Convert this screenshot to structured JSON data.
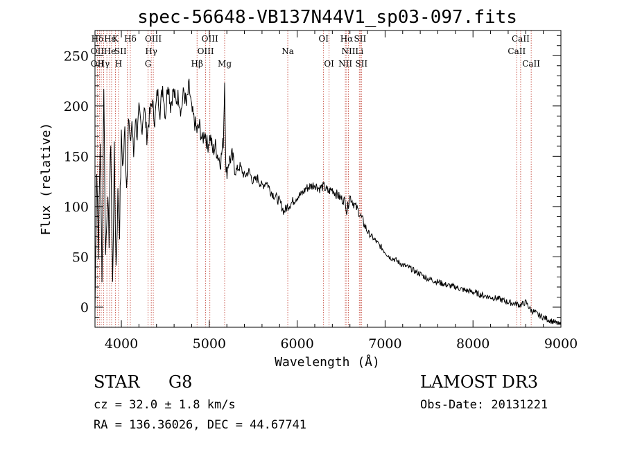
{
  "chart_data": {
    "type": "line",
    "title": "spec-56648-VB137N44V1_sp03-097.fits",
    "xlabel": "Wavelength (Å)",
    "ylabel": "Flux (relative)",
    "xlim": [
      3700,
      9000
    ],
    "ylim": [
      -20,
      275
    ],
    "x_ticks": [
      4000,
      5000,
      6000,
      7000,
      8000,
      9000
    ],
    "y_ticks": [
      0,
      50,
      100,
      150,
      200,
      250
    ],
    "series": [
      {
        "name": "spectrum",
        "x": [
          3700,
          3720,
          3740,
          3760,
          3780,
          3800,
          3820,
          3840,
          3860,
          3880,
          3900,
          3920,
          3940,
          3960,
          3980,
          4000,
          4020,
          4040,
          4060,
          4080,
          4100,
          4120,
          4140,
          4160,
          4180,
          4200,
          4230,
          4260,
          4290,
          4320,
          4350,
          4380,
          4410,
          4440,
          4470,
          4500,
          4530,
          4560,
          4590,
          4620,
          4650,
          4680,
          4710,
          4740,
          4770,
          4800,
          4830,
          4860,
          4890,
          4920,
          4950,
          4980,
          5010,
          5040,
          5070,
          5100,
          5130,
          5160,
          5175,
          5190,
          5220,
          5260,
          5300,
          5350,
          5400,
          5450,
          5500,
          5550,
          5600,
          5650,
          5700,
          5750,
          5800,
          5850,
          5890,
          5950,
          6000,
          6050,
          6100,
          6150,
          6200,
          6250,
          6300,
          6350,
          6400,
          6450,
          6500,
          6550,
          6563,
          6600,
          6650,
          6700,
          6750,
          6800,
          6850,
          6900,
          6950,
          7000,
          7050,
          7100,
          7150,
          7200,
          7250,
          7300,
          7350,
          7400,
          7450,
          7500,
          7600,
          7700,
          7800,
          7900,
          8000,
          8100,
          8200,
          8300,
          8400,
          8500,
          8540,
          8600,
          8660,
          8700,
          8750,
          8800,
          8850,
          8900,
          8950,
          9000
        ],
        "values": [
          -5,
          140,
          60,
          165,
          20,
          225,
          50,
          110,
          70,
          170,
          20,
          150,
          40,
          110,
          80,
          165,
          140,
          175,
          120,
          190,
          160,
          185,
          150,
          190,
          170,
          195,
          175,
          200,
          170,
          190,
          205,
          185,
          215,
          195,
          220,
          190,
          225,
          200,
          215,
          205,
          210,
          195,
          215,
          200,
          220,
          195,
          185,
          175,
          180,
          165,
          175,
          160,
          170,
          155,
          160,
          150,
          145,
          165,
          225,
          130,
          145,
          150,
          135,
          140,
          130,
          135,
          125,
          128,
          120,
          125,
          115,
          110,
          105,
          95,
          100,
          105,
          110,
          112,
          118,
          120,
          122,
          118,
          120,
          115,
          117,
          112,
          108,
          105,
          95,
          110,
          102,
          95,
          85,
          75,
          70,
          65,
          60,
          55,
          50,
          48,
          45,
          42,
          40,
          38,
          35,
          33,
          30,
          28,
          25,
          22,
          20,
          17,
          15,
          12,
          10,
          8,
          5,
          3,
          2,
          5,
          -3,
          -5,
          -8,
          -10,
          -12,
          -14,
          -16,
          -18
        ]
      }
    ],
    "line_labels": {
      "upper": [
        "Hδ",
        "Hε",
        "K",
        "Hδ",
        "OIII",
        "OIII",
        "OI",
        "Hα",
        "SII",
        "CaII"
      ],
      "middle": [
        "OII",
        "He",
        "SII",
        "Hγ",
        "OIII",
        "Na",
        "NII",
        "Li",
        "CaII"
      ],
      "lower": [
        "OII",
        "Hγ",
        "H",
        "G",
        "Hβ",
        "Mg",
        "OI",
        "NII",
        "SII",
        "CaII"
      ]
    }
  },
  "info": {
    "object_type": "STAR",
    "subclass": "G8",
    "survey": "LAMOST DR3",
    "redshift": "cz = 32.0 ± 1.8 km/s",
    "obs_date": "Obs-Date: 20131221",
    "coords": "RA = 136.36026, DEC =  44.67741"
  }
}
